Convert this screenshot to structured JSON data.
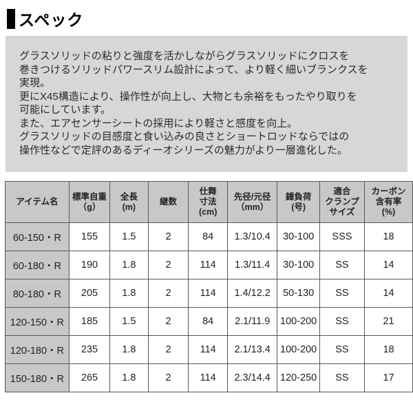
{
  "page": {
    "heading": "スペック"
  },
  "description": {
    "text": "グラスソリッドの粘りと強度を活かしながらグラスソリッドにクロスを\n巻きつけるソリッドパワースリム設計によって、より軽く細いブランクスを\n実現。\n更にX45構造により、操作性が向上し、大物とも余裕をもったやり取りを\n可能にしています。\nまた、エアセンサーシートの採用により軽さと感度を向上。\nグラスソリッドの目感度と食い込みの良さとショートロッドならではの\n操作性などで定評のあるディーオシリーズの魅力がより一層進化した。"
  },
  "table": {
    "headers": [
      "アイテム名",
      "標準自重\n（g）",
      "全長\n(m)",
      "継数",
      "仕舞\n寸法\n(cm)",
      "先径/元径\n（mm）",
      "錘負荷\n(号)",
      "適合\nクランプ\nサイズ",
      "カーボン\n含有率\n(%)"
    ],
    "rows": [
      [
        "60-150・R",
        "155",
        "1.5",
        "2",
        "84",
        "1.3/10.4",
        "30-100",
        "SSS",
        "18"
      ],
      [
        "60-180・R",
        "190",
        "1.8",
        "2",
        "114",
        "1.3/11.4",
        "30-100",
        "SS",
        "14"
      ],
      [
        "80-180・R",
        "205",
        "1.8",
        "2",
        "114",
        "1.4/12.2",
        "50-130",
        "SS",
        "14"
      ],
      [
        "120-150・R",
        "185",
        "1.5",
        "2",
        "84",
        "2.1/11.9",
        "100-200",
        "SS",
        "21"
      ],
      [
        "120-180・R",
        "235",
        "1.8",
        "2",
        "114",
        "2.1/13.4",
        "100-200",
        "SS",
        "18"
      ],
      [
        "150-180・R",
        "265",
        "1.8",
        "2",
        "114",
        "2.3/14.4",
        "120-250",
        "SS",
        "17"
      ]
    ]
  },
  "colors": {
    "description_box_bg": "#d7d7d7",
    "table_header_bg": "#c8c8c8",
    "table_border": "#555555",
    "heading_marker": "#000000"
  }
}
